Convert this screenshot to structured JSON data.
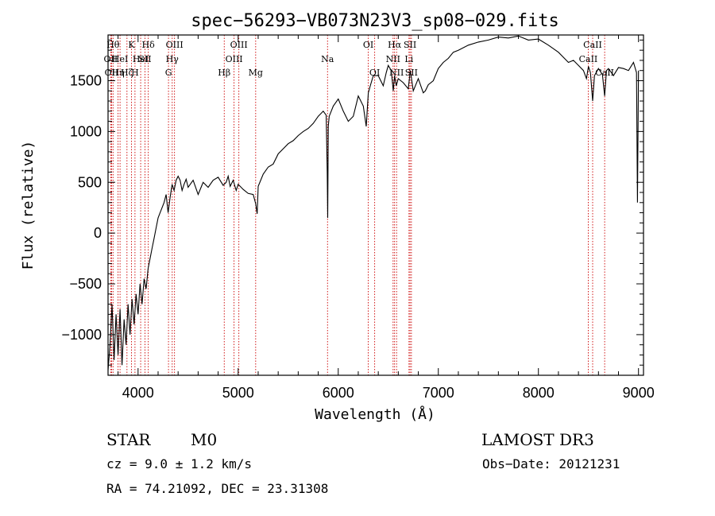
{
  "chart_data": {
    "type": "line",
    "title": "spec−56293−VB073N23V3_sp08−029.fits",
    "xlabel": "Wavelength (Å)",
    "ylabel": "Flux (relative)",
    "xlim": [
      3700,
      9050
    ],
    "ylim": [
      -1400,
      1950
    ],
    "xticks": [
      {
        "value": 4000,
        "label": "4000"
      },
      {
        "value": 5000,
        "label": "5000"
      },
      {
        "value": 6000,
        "label": "6000"
      },
      {
        "value": 7000,
        "label": "7000"
      },
      {
        "value": 8000,
        "label": "8000"
      },
      {
        "value": 9000,
        "label": "9000"
      }
    ],
    "yticks": [
      {
        "value": -1000,
        "label": "−1000"
      },
      {
        "value": -500,
        "label": "−500"
      },
      {
        "value": 0,
        "label": "0"
      },
      {
        "value": 500,
        "label": "500"
      },
      {
        "value": 1000,
        "label": "1000"
      },
      {
        "value": 1500,
        "label": "1500"
      }
    ],
    "line_color": "#000000",
    "marker_color": "#cc0000",
    "series": [
      {
        "name": "flux",
        "x": [
          3700,
          3720,
          3740,
          3760,
          3780,
          3800,
          3820,
          3840,
          3860,
          3880,
          3900,
          3920,
          3940,
          3960,
          3980,
          4000,
          4020,
          4040,
          4060,
          4080,
          4100,
          4120,
          4140,
          4160,
          4180,
          4200,
          4220,
          4240,
          4260,
          4280,
          4300,
          4320,
          4340,
          4360,
          4380,
          4400,
          4420,
          4440,
          4460,
          4480,
          4500,
          4550,
          4600,
          4650,
          4700,
          4750,
          4800,
          4850,
          4880,
          4900,
          4920,
          4950,
          4980,
          5000,
          5050,
          5100,
          5150,
          5175,
          5190,
          5200,
          5250,
          5300,
          5350,
          5400,
          5450,
          5500,
          5550,
          5600,
          5650,
          5700,
          5750,
          5800,
          5850,
          5880,
          5890,
          5895,
          5900,
          5910,
          5950,
          6000,
          6050,
          6100,
          6150,
          6200,
          6250,
          6280,
          6300,
          6320,
          6350,
          6400,
          6450,
          6480,
          6500,
          6530,
          6550,
          6563,
          6580,
          6600,
          6650,
          6700,
          6720,
          6750,
          6800,
          6850,
          6870,
          6900,
          6950,
          7000,
          7050,
          7100,
          7150,
          7200,
          7300,
          7400,
          7500,
          7600,
          7700,
          7800,
          7900,
          8000,
          8100,
          8200,
          8300,
          8350,
          8400,
          8450,
          8480,
          8500,
          8520,
          8542,
          8560,
          8600,
          8640,
          8662,
          8680,
          8700,
          8750,
          8800,
          8850,
          8900,
          8950,
          8980,
          8990,
          9000
        ],
        "values": [
          -1350,
          -1100,
          -700,
          -1250,
          -800,
          -1200,
          -750,
          -1300,
          -850,
          -1100,
          -700,
          -1000,
          -650,
          -900,
          -600,
          -800,
          -500,
          -700,
          -450,
          -550,
          -350,
          -250,
          -150,
          -50,
          50,
          150,
          200,
          250,
          300,
          380,
          200,
          350,
          480,
          420,
          520,
          560,
          520,
          420,
          480,
          530,
          450,
          520,
          380,
          500,
          450,
          520,
          550,
          470,
          500,
          560,
          460,
          520,
          420,
          480,
          430,
          390,
          380,
          290,
          190,
          460,
          580,
          650,
          680,
          780,
          830,
          880,
          910,
          960,
          1000,
          1030,
          1080,
          1150,
          1200,
          1160,
          600,
          150,
          1050,
          1150,
          1250,
          1320,
          1200,
          1100,
          1150,
          1350,
          1250,
          1050,
          1380,
          1450,
          1550,
          1550,
          1450,
          1580,
          1650,
          1600,
          1400,
          1550,
          1450,
          1520,
          1480,
          1420,
          1600,
          1400,
          1520,
          1380,
          1400,
          1460,
          1500,
          1620,
          1680,
          1720,
          1780,
          1800,
          1850,
          1880,
          1900,
          1930,
          1920,
          1940,
          1900,
          1910,
          1850,
          1780,
          1680,
          1700,
          1650,
          1600,
          1520,
          1640,
          1580,
          1300,
          1550,
          1620,
          1560,
          1350,
          1600,
          1620,
          1550,
          1630,
          1620,
          1600,
          1680,
          1580,
          300,
          1600
        ]
      }
    ],
    "lines": [
      {
        "x": 3750,
        "label": "Hθ",
        "row": 0
      },
      {
        "x": 3727,
        "label": "OII",
        "row": 1
      },
      {
        "x": 3736,
        "label": "OII",
        "row": 2
      },
      {
        "x": 3800,
        "label": "Hη",
        "row": 2
      },
      {
        "x": 3820,
        "label": "HeI",
        "row": 1
      },
      {
        "x": 3889,
        "label": "Hζ",
        "row": 2
      },
      {
        "x": 3934,
        "label": "K",
        "row": 0
      },
      {
        "x": 3969,
        "label": "H",
        "row": 2
      },
      {
        "x": 4026,
        "label": "HeI",
        "row": 1
      },
      {
        "x": 4069,
        "label": "SII",
        "row": 1
      },
      {
        "x": 4102,
        "label": "Hδ",
        "row": 0
      },
      {
        "x": 4304,
        "label": "G",
        "row": 2
      },
      {
        "x": 4341,
        "label": "Hγ",
        "row": 1
      },
      {
        "x": 4364,
        "label": "OIII",
        "row": 0
      },
      {
        "x": 4861,
        "label": "Hβ",
        "row": 2
      },
      {
        "x": 4959,
        "label": "OIII",
        "row": 1
      },
      {
        "x": 5007,
        "label": "OIII",
        "row": 0
      },
      {
        "x": 5175,
        "label": "Mg",
        "row": 2
      },
      {
        "x": 5893,
        "label": "Na",
        "row": 1
      },
      {
        "x": 6300,
        "label": "OI",
        "row": 0
      },
      {
        "x": 6364,
        "label": "OI",
        "row": 2
      },
      {
        "x": 6548,
        "label": "NII",
        "row": 1
      },
      {
        "x": 6563,
        "label": "Hα",
        "row": 0
      },
      {
        "x": 6583,
        "label": "NII",
        "row": 2
      },
      {
        "x": 6707,
        "label": "Li",
        "row": 1
      },
      {
        "x": 6717,
        "label": "SII",
        "row": 0
      },
      {
        "x": 6731,
        "label": "SII",
        "row": 2
      },
      {
        "x": 8498,
        "label": "CaII",
        "row": 1
      },
      {
        "x": 8542,
        "label": "CaII",
        "row": 0
      },
      {
        "x": 8662,
        "label": "CaII",
        "row": 2
      }
    ]
  },
  "info": {
    "class": "STAR",
    "subclass": "M0",
    "survey": "LAMOST DR3",
    "redshift": "cz = 9.0 ± 1.2 km/s",
    "obsdate": "Obs−Date: 20121231",
    "coords": "RA =  74.21092, DEC =  23.31308"
  }
}
